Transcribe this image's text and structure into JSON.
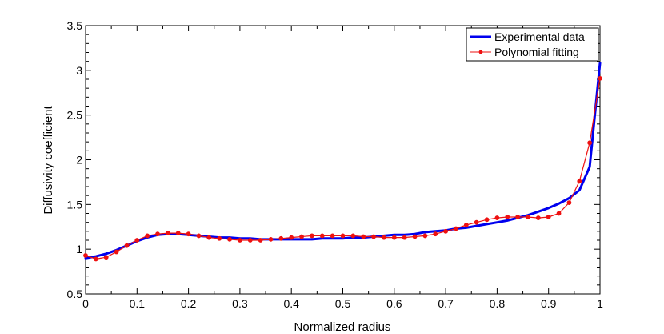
{
  "chart_data": {
    "type": "line",
    "title": "",
    "xlabel": "Normalized radius",
    "ylabel": "Diffusivity coefficient",
    "xlim": [
      0,
      1
    ],
    "ylim": [
      0.5,
      3.5
    ],
    "grid": false,
    "legend_position": "top-right",
    "x_ticks": [
      "0",
      "0.1",
      "0.2",
      "0.3",
      "0.4",
      "0.5",
      "0.6",
      "0.7",
      "0.8",
      "0.9",
      "1"
    ],
    "y_ticks": [
      "0.5",
      "1",
      "1.5",
      "2",
      "2.5",
      "3",
      "3.5"
    ],
    "series": [
      {
        "name": "Experimental data",
        "color": "#0000ee",
        "marker": "none",
        "points": [
          [
            0.0,
            0.9
          ],
          [
            0.02,
            0.92
          ],
          [
            0.04,
            0.95
          ],
          [
            0.06,
            0.99
          ],
          [
            0.08,
            1.04
          ],
          [
            0.1,
            1.09
          ],
          [
            0.12,
            1.13
          ],
          [
            0.14,
            1.16
          ],
          [
            0.16,
            1.17
          ],
          [
            0.18,
            1.17
          ],
          [
            0.2,
            1.16
          ],
          [
            0.22,
            1.15
          ],
          [
            0.24,
            1.14
          ],
          [
            0.26,
            1.13
          ],
          [
            0.28,
            1.13
          ],
          [
            0.3,
            1.12
          ],
          [
            0.32,
            1.12
          ],
          [
            0.34,
            1.11
          ],
          [
            0.36,
            1.11
          ],
          [
            0.38,
            1.11
          ],
          [
            0.4,
            1.11
          ],
          [
            0.42,
            1.11
          ],
          [
            0.44,
            1.11
          ],
          [
            0.46,
            1.12
          ],
          [
            0.48,
            1.12
          ],
          [
            0.5,
            1.12
          ],
          [
            0.52,
            1.13
          ],
          [
            0.54,
            1.13
          ],
          [
            0.56,
            1.14
          ],
          [
            0.58,
            1.15
          ],
          [
            0.6,
            1.16
          ],
          [
            0.62,
            1.16
          ],
          [
            0.64,
            1.17
          ],
          [
            0.66,
            1.19
          ],
          [
            0.68,
            1.2
          ],
          [
            0.7,
            1.21
          ],
          [
            0.72,
            1.23
          ],
          [
            0.74,
            1.24
          ],
          [
            0.76,
            1.26
          ],
          [
            0.78,
            1.28
          ],
          [
            0.8,
            1.3
          ],
          [
            0.82,
            1.32
          ],
          [
            0.84,
            1.35
          ],
          [
            0.86,
            1.38
          ],
          [
            0.88,
            1.42
          ],
          [
            0.9,
            1.46
          ],
          [
            0.92,
            1.51
          ],
          [
            0.94,
            1.57
          ],
          [
            0.96,
            1.66
          ],
          [
            0.98,
            1.92
          ],
          [
            1.0,
            3.08
          ]
        ]
      },
      {
        "name": "Polynomial fitting",
        "color": "#ee1111",
        "marker": "circle",
        "points": [
          [
            0.0,
            0.93
          ],
          [
            0.02,
            0.89
          ],
          [
            0.04,
            0.91
          ],
          [
            0.06,
            0.97
          ],
          [
            0.08,
            1.04
          ],
          [
            0.1,
            1.1
          ],
          [
            0.12,
            1.15
          ],
          [
            0.14,
            1.17
          ],
          [
            0.16,
            1.18
          ],
          [
            0.18,
            1.18
          ],
          [
            0.2,
            1.17
          ],
          [
            0.22,
            1.15
          ],
          [
            0.24,
            1.13
          ],
          [
            0.26,
            1.12
          ],
          [
            0.28,
            1.11
          ],
          [
            0.3,
            1.1
          ],
          [
            0.32,
            1.1
          ],
          [
            0.34,
            1.1
          ],
          [
            0.36,
            1.11
          ],
          [
            0.38,
            1.12
          ],
          [
            0.4,
            1.13
          ],
          [
            0.42,
            1.14
          ],
          [
            0.44,
            1.15
          ],
          [
            0.46,
            1.15
          ],
          [
            0.48,
            1.15
          ],
          [
            0.5,
            1.15
          ],
          [
            0.52,
            1.15
          ],
          [
            0.54,
            1.14
          ],
          [
            0.56,
            1.14
          ],
          [
            0.58,
            1.13
          ],
          [
            0.6,
            1.13
          ],
          [
            0.62,
            1.13
          ],
          [
            0.64,
            1.14
          ],
          [
            0.66,
            1.15
          ],
          [
            0.68,
            1.17
          ],
          [
            0.7,
            1.2
          ],
          [
            0.72,
            1.23
          ],
          [
            0.74,
            1.27
          ],
          [
            0.76,
            1.3
          ],
          [
            0.78,
            1.33
          ],
          [
            0.8,
            1.35
          ],
          [
            0.82,
            1.36
          ],
          [
            0.84,
            1.36
          ],
          [
            0.86,
            1.36
          ],
          [
            0.88,
            1.35
          ],
          [
            0.9,
            1.36
          ],
          [
            0.92,
            1.4
          ],
          [
            0.94,
            1.52
          ],
          [
            0.96,
            1.76
          ],
          [
            0.98,
            2.19
          ],
          [
            1.0,
            2.91
          ]
        ]
      }
    ]
  }
}
